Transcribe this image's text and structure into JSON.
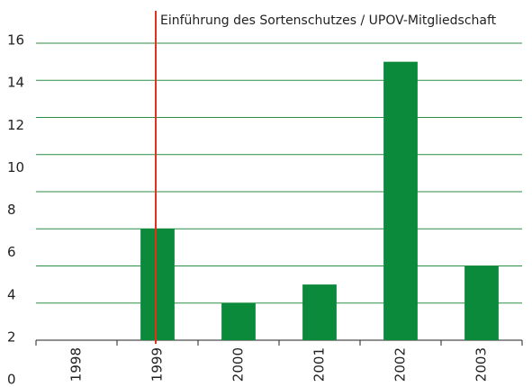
{
  "chart_data": {
    "type": "bar",
    "categories": [
      "1998",
      "1999",
      "2000",
      "2001",
      "2002",
      "2003"
    ],
    "values": [
      0,
      6,
      2,
      3,
      15,
      4
    ],
    "color": "#0c8a3c",
    "ylim": [
      0,
      16
    ],
    "yticks": [
      0,
      2,
      4,
      6,
      8,
      10,
      12,
      14,
      16
    ],
    "grid": true,
    "annotation": {
      "text": "Einführung des Sortenschutzes / UPOV-Mitgliedschaft",
      "x": "1999",
      "color": "#e0301e"
    }
  }
}
